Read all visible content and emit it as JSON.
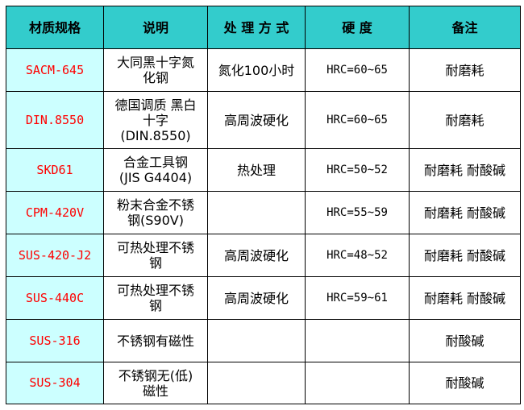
{
  "colors": {
    "header_bg": "#33CCCC",
    "spec_col_bg": "#CCFFFF",
    "spec_text": "#FF0000"
  },
  "headers": [
    "材质规格",
    "说明",
    "处 理 方 式",
    "硬 度",
    "备注"
  ],
  "rows": [
    {
      "spec": "SACM-645",
      "desc": "大同黑十字氮\n化钢",
      "process": "氮化100小时",
      "hardness": "HRC=60~65",
      "note": "耐磨耗"
    },
    {
      "spec": "DIN.8550",
      "desc": "德国调质 黑白\n十字\n(DIN.8550)",
      "process": "高周波硬化",
      "hardness": "HRC=60~65",
      "note": "耐磨耗"
    },
    {
      "spec": "SKD61",
      "desc": "合金工具钢\n(JIS G4404)",
      "process": "热处理",
      "hardness": "HRC=50~52",
      "note": "耐磨耗 耐酸碱"
    },
    {
      "spec": "CPM-420V",
      "desc": "粉末合金不锈\n钢(S90V)",
      "process": "",
      "hardness": "HRC=55~59",
      "note": "耐磨耗 耐酸碱"
    },
    {
      "spec": "SUS-420-J2",
      "desc": "可热处理不锈\n钢",
      "process": "高周波硬化",
      "hardness": "HRC=48~52",
      "note": "耐磨耗 耐酸碱"
    },
    {
      "spec": "SUS-440C",
      "desc": "可热处理不锈\n钢",
      "process": "高周波硬化",
      "hardness": "HRC=59~61",
      "note": "耐磨耗 耐酸碱"
    },
    {
      "spec": "SUS-316",
      "desc": "不锈钢有磁性",
      "process": "",
      "hardness": "",
      "note": "耐酸碱"
    },
    {
      "spec": "SUS-304",
      "desc": "不锈钢无(低)\n磁性",
      "process": "",
      "hardness": "",
      "note": "耐酸碱"
    }
  ]
}
